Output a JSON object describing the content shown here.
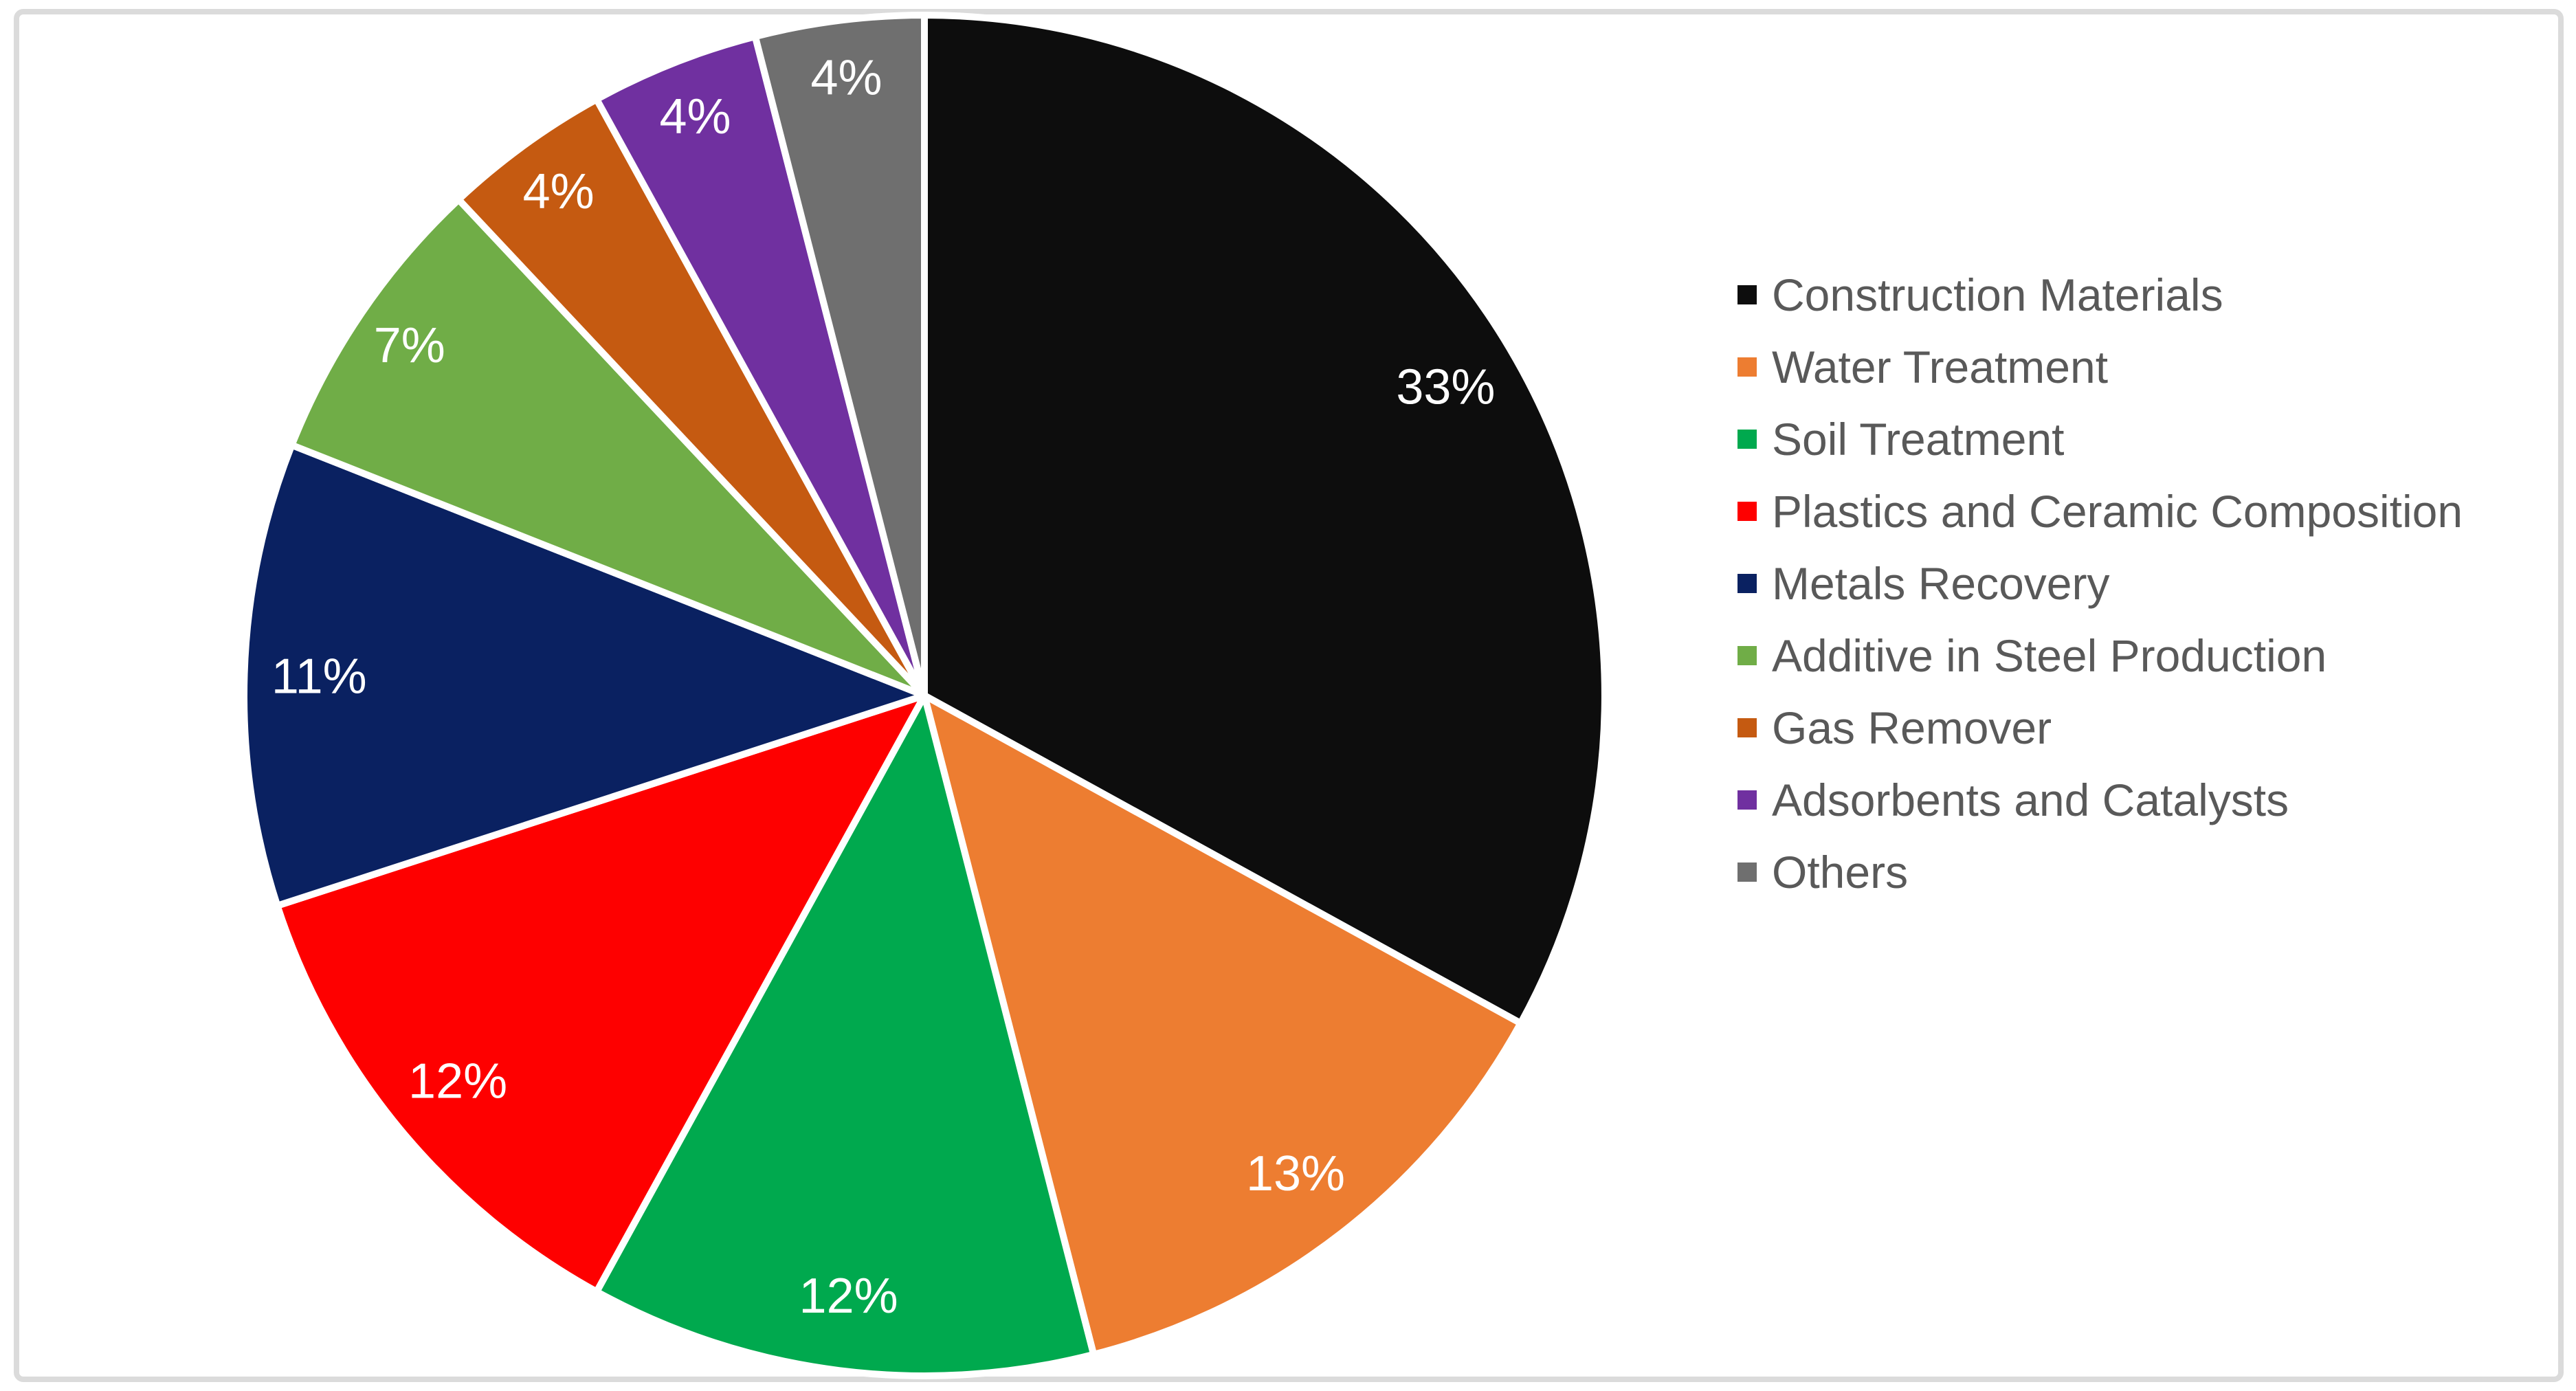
{
  "chart_data": {
    "type": "pie",
    "title": "",
    "categories": [
      "Construction Materials",
      "Water Treatment",
      "Soil Treatment",
      "Plastics and Ceramic Composition",
      "Metals Recovery",
      "Additive in Steel Production",
      "Gas Remover",
      "Adsorbents and Catalysts",
      "Others"
    ],
    "values": [
      33,
      13,
      12,
      12,
      11,
      7,
      4,
      4,
      4
    ],
    "data_labels": [
      "33%",
      "13%",
      "12%",
      "12%",
      "11%",
      "7%",
      "4%",
      "4%",
      "4%"
    ],
    "colors": [
      "#0D0D0D",
      "#ED7D31",
      "#00A94E",
      "#FE0000",
      "#0A2161",
      "#70AD47",
      "#C55A11",
      "#7030A0",
      "#6F6F6F"
    ],
    "start_angle_deg": 0,
    "direction": "clockwise",
    "label_position": "inside-end",
    "label_color": "#FFFFFF",
    "slice_border_color": "#FFFFFF",
    "legend_position": "right",
    "legend_text_color": "#595959"
  },
  "canvas": {
    "background_color": "#FFFFFF",
    "frame_border_color": "#DBDBDB"
  }
}
